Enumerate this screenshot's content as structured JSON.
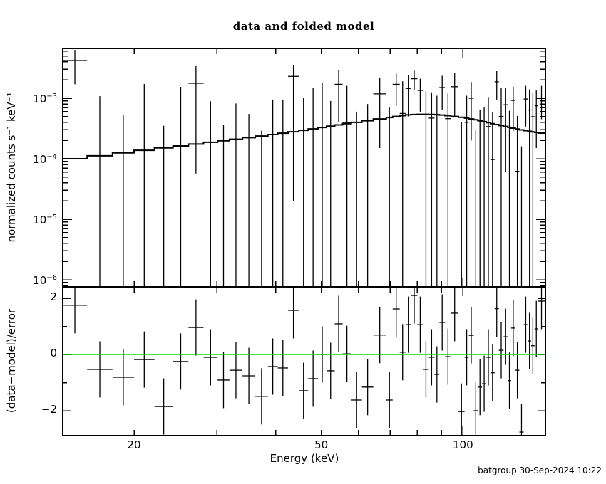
{
  "title": "data and folded model",
  "xlabel": "Energy (keV)",
  "ylabel_top": "normalized counts s⁻¹ keV⁻¹",
  "ylabel_bottom": "(data−model)/error",
  "footer": "batgroup 30-Sep-2024 10:22",
  "colors": {
    "foreground": "#000000",
    "zero_line": "#00e000",
    "background": "#ffffff"
  },
  "chart_data": [
    {
      "type": "scatter",
      "title": "data and folded model",
      "xlabel": "Energy (keV)",
      "ylabel": "normalized counts s-1 keV-1",
      "xscale": "log",
      "yscale": "log",
      "xlim": [
        14.1,
        149.4
      ],
      "ylim": [
        7.6e-07,
        0.0067
      ],
      "grid": false,
      "legend": "none",
      "x_ticks": [
        {
          "value": 20,
          "label": "20"
        },
        {
          "value": 50,
          "label": "50"
        },
        {
          "value": 100,
          "label": "100"
        }
      ],
      "x_minor_ticks": [
        30,
        40,
        60,
        70,
        80,
        90
      ],
      "y_ticks": [
        {
          "value": 0.001,
          "base": "10",
          "exp": "−3"
        },
        {
          "value": 0.0001,
          "base": "10",
          "exp": "−4"
        },
        {
          "value": 1e-05,
          "base": "10",
          "exp": "−5"
        },
        {
          "value": 1e-06,
          "base": "10",
          "exp": "−6"
        }
      ],
      "series_note": "bins: data points with error bars (bar_bottom null = clipped below axis, data null = data tick below axis); model = folded model histogram",
      "bin_fields": [
        "e_lo",
        "e_hi",
        "model",
        "resid",
        "data",
        "bar_top",
        "bar_bottom"
      ],
      "bins": [
        [
          14.1,
          15.9,
          0.0001,
          1.75,
          0.0042,
          0.0063,
          0.0017
        ],
        [
          15.9,
          18.0,
          0.000112,
          -0.53,
          null,
          0.00108,
          null
        ],
        [
          18.0,
          20.0,
          0.000125,
          -0.81,
          null,
          0.00052,
          null
        ],
        [
          20.0,
          22.1,
          0.000138,
          -0.18,
          null,
          0.00172,
          null
        ],
        [
          22.1,
          24.2,
          0.000151,
          -1.85,
          null,
          0.00035,
          null
        ],
        [
          24.2,
          26.1,
          0.000163,
          -0.25,
          null,
          0.00154,
          null
        ],
        [
          26.1,
          28.1,
          0.000175,
          0.96,
          0.00177,
          0.0034,
          5.7e-05
        ],
        [
          28.1,
          30.1,
          0.000187,
          -0.1,
          null,
          0.00089,
          null
        ],
        [
          30.1,
          31.9,
          0.000198,
          -0.91,
          null,
          0.00036,
          null
        ],
        [
          31.9,
          34.0,
          0.00021,
          -0.56,
          null,
          0.00082,
          null
        ],
        [
          34.0,
          36.2,
          0.000223,
          -0.76,
          null,
          0.00055,
          null
        ],
        [
          36.2,
          38.5,
          0.000237,
          -1.49,
          null,
          0.00029,
          null
        ],
        [
          38.5,
          40.4,
          0.000251,
          -0.43,
          null,
          0.00095,
          null
        ],
        [
          40.4,
          42.5,
          0.000264,
          -0.48,
          null,
          0.00095,
          null
        ],
        [
          42.5,
          44.8,
          0.000279,
          1.57,
          0.0023,
          0.0035,
          2e-05
        ],
        [
          44.8,
          46.9,
          0.000295,
          -1.29,
          null,
          0.001,
          null
        ],
        [
          46.9,
          49.2,
          0.000311,
          -0.86,
          null,
          0.0015,
          null
        ],
        [
          49.2,
          51.3,
          0.000328,
          0.0,
          0.00033,
          0.0018,
          null
        ],
        [
          51.3,
          53.4,
          0.000345,
          -0.58,
          null,
          0.0009,
          null
        ],
        [
          53.4,
          55.5,
          0.000362,
          1.09,
          0.0017,
          0.0029,
          0.0004
        ],
        [
          55.5,
          57.9,
          0.00038,
          0.02,
          0.00039,
          0.0016,
          null
        ],
        [
          57.9,
          61.0,
          0.0004,
          -1.62,
          null,
          0.0006,
          null
        ],
        [
          61.0,
          64.5,
          0.000425,
          -1.16,
          null,
          0.0008,
          null
        ],
        [
          64.5,
          68.7,
          0.000455,
          0.69,
          0.00118,
          0.0022,
          0.00015
        ],
        [
          68.7,
          70.9,
          0.00048,
          -1.62,
          null,
          0.0007,
          null
        ],
        [
          70.9,
          73.4,
          0.0005,
          1.62,
          0.0017,
          0.00265,
          0.00075
        ],
        [
          73.4,
          75.5,
          0.000515,
          0.08,
          0.00056,
          0.0019,
          null
        ],
        [
          75.5,
          77.6,
          0.00053,
          1.06,
          0.00145,
          0.0024,
          0.0005
        ],
        [
          77.6,
          80.0,
          0.000538,
          2.1,
          0.0021,
          0.00285,
          0.00135
        ],
        [
          80.0,
          82.3,
          0.000542,
          1.06,
          0.00135,
          0.0021,
          0.0006
        ],
        [
          82.3,
          84.6,
          0.000542,
          -0.53,
          null,
          0.0013,
          null
        ],
        [
          84.6,
          87.0,
          0.00054,
          -0.1,
          0.00047,
          0.00125,
          null
        ],
        [
          87.0,
          89.1,
          0.000535,
          -0.71,
          null,
          0.0011,
          null
        ],
        [
          89.1,
          91.6,
          0.000528,
          1.14,
          0.0015,
          0.00235,
          0.00065
        ],
        [
          91.6,
          94.3,
          0.000515,
          -0.08,
          0.00046,
          0.0012,
          null
        ],
        [
          94.3,
          97.8,
          0.0005,
          1.47,
          0.00155,
          0.0026,
          0.0005
        ],
        [
          97.8,
          100.8,
          0.000485,
          -2.03,
          null,
          0.0004,
          null
        ],
        [
          100.8,
          102.9,
          0.00047,
          -0.1,
          0.0004,
          0.0011,
          null
        ],
        [
          102.9,
          105.4,
          0.000455,
          0.68,
          0.001,
          0.00185,
          0.0002
        ],
        [
          105.4,
          107.6,
          0.00044,
          -2.0,
          null,
          0.0003,
          null
        ],
        [
          107.6,
          109.8,
          0.000425,
          -1.16,
          null,
          0.00065,
          null
        ],
        [
          109.8,
          112.1,
          0.00041,
          -1.04,
          null,
          0.0007,
          null
        ],
        [
          112.1,
          114.4,
          0.000395,
          -0.1,
          0.00034,
          0.00105,
          null
        ],
        [
          114.4,
          116.8,
          0.00038,
          -0.65,
          9.7e-05,
          0.00058,
          null
        ],
        [
          116.8,
          119.2,
          0.000367,
          1.63,
          0.00187,
          0.0028,
          0.00095
        ],
        [
          119.2,
          122.0,
          0.000354,
          0.15,
          0.0005,
          0.0015,
          null
        ],
        [
          122.0,
          124.5,
          0.000342,
          0.63,
          0.00078,
          0.0015,
          6e-05
        ],
        [
          124.5,
          126.6,
          0.00033,
          -0.93,
          null,
          0.00062,
          null
        ],
        [
          126.6,
          129.2,
          0.00032,
          0.94,
          0.00092,
          0.00155,
          0.00029
        ],
        [
          129.2,
          131.8,
          0.00031,
          -0.56,
          6.2e-05,
          0.00051,
          null
        ],
        [
          131.8,
          134.6,
          0.0003,
          -2.76,
          null,
          0.00016,
          null
        ],
        [
          134.6,
          137.4,
          0.000292,
          1.06,
          0.00097,
          0.0016,
          0.00034
        ],
        [
          137.4,
          139.6,
          0.000285,
          0.48,
          0.00064,
          0.0014,
          null
        ],
        [
          139.6,
          142.0,
          0.000278,
          0.31,
          0.000495,
          0.0012,
          null
        ],
        [
          142.0,
          144.4,
          0.000272,
          0.91,
          0.00075,
          0.00135,
          0.00015
        ],
        [
          144.4,
          149.4,
          0.000265,
          1.9,
          0.001,
          0.0016,
          0.00045
        ]
      ]
    },
    {
      "type": "scatter",
      "ylabel": "(data-model)/error",
      "xlabel": "Energy (keV)",
      "xscale": "log",
      "yscale": "linear",
      "xlim": [
        14.1,
        149.4
      ],
      "ylim": [
        -2.89,
        2.4
      ],
      "zero_line": 0,
      "zero_line_color": "#00e000",
      "y_ticks": [
        {
          "value": 2,
          "label": "2"
        },
        {
          "value": 0,
          "label": "0"
        },
        {
          "value": -2,
          "label": "−2"
        }
      ],
      "y_minor_ticks": [
        1,
        -1
      ],
      "series_note": "residual per bin = resid field in chart_data[0].bins, error bars are ±1"
    }
  ]
}
